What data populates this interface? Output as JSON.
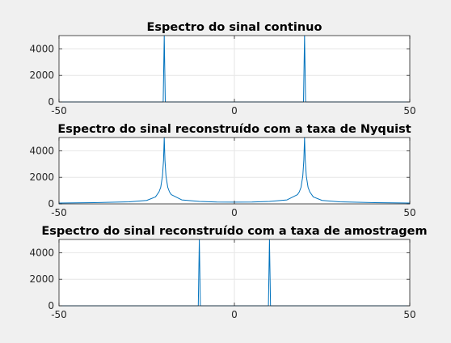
{
  "figure": {
    "background": "#f0f0f0",
    "axes_background": "#ffffff",
    "line_color": "#0072bd",
    "grid_color": "#e6e6e6"
  },
  "chart_data": [
    {
      "type": "line",
      "title": "Espectro do sinal continuo",
      "xlabel": "",
      "ylabel": "",
      "xlim": [
        -50,
        50
      ],
      "ylim": [
        0,
        5000
      ],
      "xticks": [
        -50,
        0,
        50
      ],
      "yticks": [
        0,
        2000,
        4000
      ],
      "grid": true,
      "series": [
        {
          "x": [
            -50,
            -21,
            -20.3,
            -20,
            -19.7,
            -19,
            19,
            19.7,
            20,
            20.3,
            21,
            50
          ],
          "y": [
            0,
            0,
            0,
            5000,
            0,
            0,
            0,
            0,
            5000,
            0,
            0,
            0
          ]
        }
      ]
    },
    {
      "type": "line",
      "title": "Espectro do sinal reconstruído com a taxa de Nyquist",
      "xlabel": "",
      "ylabel": "",
      "xlim": [
        -50,
        50
      ],
      "ylim": [
        0,
        5000
      ],
      "xticks": [
        -50,
        0,
        50
      ],
      "yticks": [
        0,
        2000,
        4000
      ],
      "grid": true,
      "series": [
        {
          "x": [
            -50,
            -40,
            -30,
            -25,
            -22.5,
            -21.5,
            -21,
            -20.5,
            -20.2,
            -20,
            -19.8,
            -19.5,
            -19,
            -18.5,
            -18,
            -15,
            -10,
            -5,
            0,
            5,
            10,
            15,
            18,
            18.5,
            19,
            19.5,
            19.8,
            20,
            20.2,
            20.5,
            21,
            21.5,
            22.5,
            25,
            30,
            40,
            50
          ],
          "y": [
            60,
            90,
            150,
            260,
            520,
            900,
            1250,
            2100,
            3300,
            5000,
            3300,
            2100,
            1250,
            900,
            700,
            300,
            180,
            140,
            130,
            140,
            180,
            300,
            700,
            900,
            1250,
            2100,
            3300,
            5000,
            3300,
            2100,
            1250,
            900,
            520,
            260,
            150,
            90,
            60
          ]
        }
      ]
    },
    {
      "type": "line",
      "title": "Espectro do sinal reconstruído com a taxa de amostragem",
      "xlabel": "",
      "ylabel": "",
      "xlim": [
        -50,
        50
      ],
      "ylim": [
        0,
        5000
      ],
      "xticks": [
        -50,
        0,
        50
      ],
      "yticks": [
        0,
        2000,
        4000
      ],
      "grid": true,
      "series": [
        {
          "x": [
            -50,
            -11,
            -10.3,
            -10,
            -9.7,
            -9,
            9,
            9.7,
            10,
            10.3,
            11,
            50
          ],
          "y": [
            0,
            0,
            0,
            5000,
            0,
            0,
            0,
            0,
            5000,
            0,
            0,
            0
          ]
        }
      ]
    }
  ]
}
